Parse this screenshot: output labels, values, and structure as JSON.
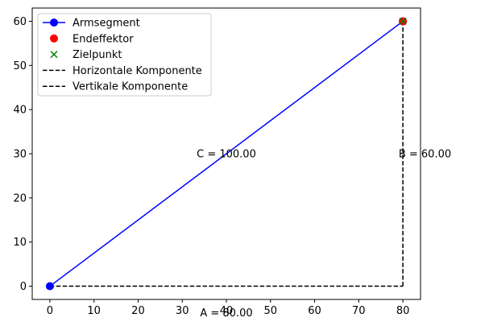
{
  "chart_data": {
    "type": "line",
    "title": "",
    "xlabel": "",
    "ylabel": "",
    "xlim": [
      -4,
      84
    ],
    "ylim": [
      -3,
      63
    ],
    "xticks": [
      0,
      10,
      20,
      30,
      40,
      50,
      60,
      70,
      80
    ],
    "yticks": [
      0,
      10,
      20,
      30,
      40,
      50,
      60
    ],
    "grid": false,
    "legend_position": "top-left",
    "series": [
      {
        "name": "Armsegment",
        "kind": "line-marker",
        "color": "#0000ff",
        "marker": "circle",
        "x": [
          0,
          80
        ],
        "y": [
          0,
          60
        ]
      },
      {
        "name": "Endeffektor",
        "kind": "marker",
        "color": "#ff0000",
        "marker": "circle",
        "x": [
          80
        ],
        "y": [
          60
        ]
      },
      {
        "name": "Zielpunkt",
        "kind": "marker",
        "color": "#008000",
        "marker": "x",
        "x": [
          80
        ],
        "y": [
          60
        ]
      },
      {
        "name": "Horizontale Komponente",
        "kind": "dashed-line",
        "color": "#000000",
        "x": [
          0,
          80
        ],
        "y": [
          0,
          0
        ]
      },
      {
        "name": "Vertikale Komponente",
        "kind": "dashed-line",
        "color": "#000000",
        "x": [
          80,
          80
        ],
        "y": [
          0,
          60
        ]
      }
    ],
    "annotations": [
      {
        "text": "A = 80.00",
        "x": 40,
        "y": -6
      },
      {
        "text": "B = 60.00",
        "x": 85,
        "y": 30
      },
      {
        "text": "C = 100.00",
        "x": 40,
        "y": 30
      }
    ]
  }
}
